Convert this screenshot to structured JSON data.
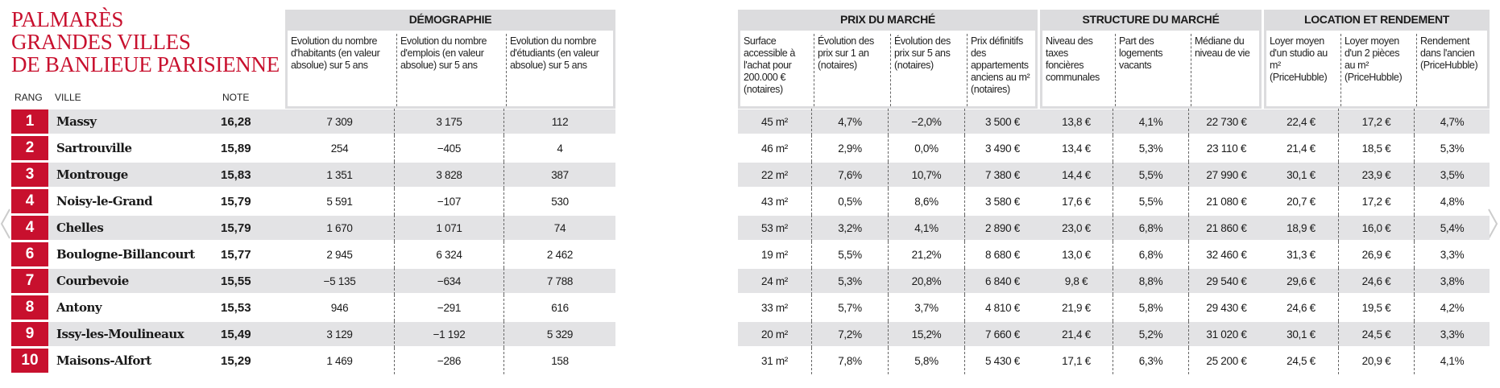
{
  "title": [
    "PALMARÈS",
    "GRANDES VILLES",
    "DE BANLIEUE PARISIENNE"
  ],
  "left_headers": [
    "RANG",
    "VILLE",
    "NOTE"
  ],
  "groups": [
    {
      "title": "DÉMOGRAPHIE",
      "columns": [
        "Evolution du nombre d'habitants (en valeur absolue) sur 5 ans",
        "Evolution du nombre d'emplois (en valeur absolue) sur 5 ans",
        "Evolution du nombre d'étudiants (en valeur absolue) sur 5 ans"
      ]
    },
    {
      "title": "PRIX DU MARCHÉ",
      "columns": [
        "Surface accessible à l'achat pour 200.000 € (notaires)",
        "Évolution des prix sur 1 an (notaires)",
        "Évolution des prix sur 5 ans (notaires)",
        "Prix définitifs des appartements anciens au m² (notaires)"
      ]
    },
    {
      "title": "STRUCTURE DU MARCHÉ",
      "columns": [
        "Niveau des taxes foncières communales",
        "Part des logements vacants",
        "Médiane du niveau de vie"
      ]
    },
    {
      "title": "LOCATION ET RENDEMENT",
      "columns": [
        "Loyer moyen d'un studio au m² (PriceHubble)",
        "Loyer moyen d'un 2 pièces au m² (PriceHubble)",
        "Rendement dans l'ancien (PriceHubble)"
      ]
    }
  ],
  "rows": [
    {
      "rang": 1,
      "ville": "Massy",
      "note": "16,28",
      "values": [
        "7 309",
        "3 175",
        "112",
        "45 m²",
        "4,7%",
        "−2,0%",
        "3 500 €",
        "13,8 €",
        "4,1%",
        "22 730 €",
        "22,4 €",
        "17,2 €",
        "4,7%"
      ]
    },
    {
      "rang": 2,
      "ville": "Sartrouville",
      "note": "15,89",
      "values": [
        "254",
        "−405",
        "4",
        "46 m²",
        "2,9%",
        "0,0%",
        "3 490 €",
        "13,4 €",
        "5,3%",
        "23 110 €",
        "21,4 €",
        "18,5 €",
        "5,3%"
      ]
    },
    {
      "rang": 3,
      "ville": "Montrouge",
      "note": "15,83",
      "values": [
        "1 351",
        "3 828",
        "387",
        "22 m²",
        "7,6%",
        "10,7%",
        "7 380 €",
        "14,4 €",
        "5,5%",
        "27 990 €",
        "30,1 €",
        "23,9 €",
        "3,5%"
      ]
    },
    {
      "rang": 4,
      "ville": "Noisy-le-Grand",
      "note": "15,79",
      "values": [
        "5 591",
        "−107",
        "530",
        "43 m²",
        "0,5%",
        "8,6%",
        "3 580 €",
        "17,6 €",
        "5,5%",
        "21 080 €",
        "20,7 €",
        "17,2 €",
        "4,8%"
      ]
    },
    {
      "rang": 4,
      "ville": "Chelles",
      "note": "15,79",
      "values": [
        "1 670",
        "1 071",
        "74",
        "53 m²",
        "3,2%",
        "4,1%",
        "2 890 €",
        "23,0 €",
        "6,8%",
        "21 860 €",
        "18,9 €",
        "16,0 €",
        "5,4%"
      ]
    },
    {
      "rang": 6,
      "ville": "Boulogne-Billancourt",
      "note": "15,77",
      "values": [
        "2 945",
        "6 324",
        "2 462",
        "19 m²",
        "5,5%",
        "21,2%",
        "8 680 €",
        "13,0 €",
        "6,8%",
        "32 460 €",
        "31,3 €",
        "26,9 €",
        "3,3%"
      ]
    },
    {
      "rang": 7,
      "ville": "Courbevoie",
      "note": "15,55",
      "values": [
        "−5 135",
        "−634",
        "7 788",
        "24 m²",
        "5,3%",
        "20,8%",
        "6 840 €",
        "9,8 €",
        "8,8%",
        "29 540 €",
        "29,6 €",
        "24,6 €",
        "3,8%"
      ]
    },
    {
      "rang": 8,
      "ville": "Antony",
      "note": "15,53",
      "values": [
        "946",
        "−291",
        "616",
        "33 m²",
        "5,7%",
        "3,7%",
        "4 810 €",
        "21,9 €",
        "5,8%",
        "29 430 €",
        "24,6 €",
        "19,5 €",
        "4,2%"
      ]
    },
    {
      "rang": 9,
      "ville": "Issy-les-Moulineaux",
      "note": "15,49",
      "values": [
        "3 129",
        "−1 192",
        "5 329",
        "20 m²",
        "7,2%",
        "15,2%",
        "7 660 €",
        "21,4 €",
        "5,2%",
        "31 020 €",
        "30,1 €",
        "24,5 €",
        "3,3%"
      ]
    },
    {
      "rang": 10,
      "ville": "Maisons-Alfort",
      "note": "15,29",
      "values": [
        "1 469",
        "−286",
        "158",
        "31 m²",
        "7,8%",
        "5,8%",
        "5 430 €",
        "17,1 €",
        "6,3%",
        "25 200 €",
        "24,5 €",
        "20,9 €",
        "4,1%"
      ]
    }
  ]
}
